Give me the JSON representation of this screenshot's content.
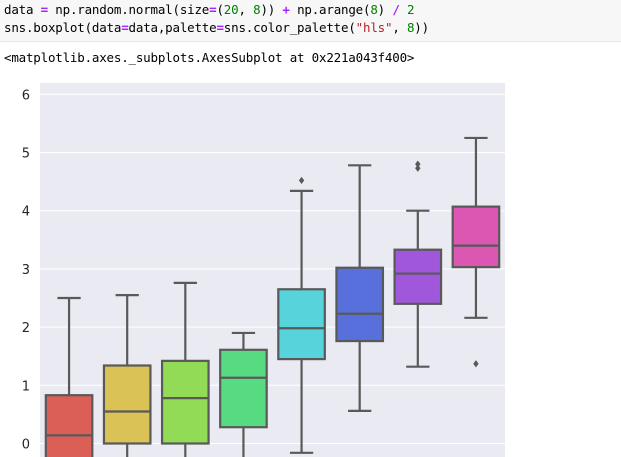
{
  "code": {
    "line1": {
      "a": "data ",
      "op1": "=",
      "b": " np.random.normal(size",
      "op2": "=",
      "c": "(",
      "n1": "20",
      "d": ", ",
      "n2": "8",
      "e": ")) ",
      "op3": "+",
      "f": " np.arange(",
      "n3": "8",
      "g": ") ",
      "op4": "/",
      "h": " ",
      "n4": "2"
    },
    "line2": {
      "a": "sns.boxplot(data",
      "op1": "=",
      "b": "data,palette",
      "op2": "=",
      "c": "sns.color_palette(",
      "s1": "\"hls\"",
      "d": ", ",
      "n1": "8",
      "e": "))"
    }
  },
  "output_text": "<matplotlib.axes._subplots.AxesSubplot at 0x221a043f400>",
  "chart_data": {
    "type": "boxplot",
    "title": "",
    "xlabel": "",
    "ylabel": "",
    "ylim_visible": [
      -0.25,
      6.25
    ],
    "yticks": [
      "0",
      "1",
      "2",
      "3",
      "4",
      "5",
      "6"
    ],
    "ytick_values": [
      0,
      1,
      2,
      3,
      4,
      5,
      6
    ],
    "grid": true,
    "background": "#eaeaf2",
    "series": [
      {
        "color": "#db5f57",
        "q1": -0.3,
        "median": 0.14,
        "q3": 0.83,
        "whisker_low": -0.3,
        "whisker_high": 2.5,
        "outliers": []
      },
      {
        "color": "#dbc257",
        "q1": 0.0,
        "median": 0.55,
        "q3": 1.34,
        "whisker_low": -0.3,
        "whisker_high": 2.55,
        "outliers": []
      },
      {
        "color": "#91db57",
        "q1": 0.0,
        "median": 0.78,
        "q3": 1.42,
        "whisker_low": -0.3,
        "whisker_high": 2.76,
        "outliers": []
      },
      {
        "color": "#57db80",
        "q1": 0.28,
        "median": 1.13,
        "q3": 1.61,
        "whisker_low": -0.3,
        "whisker_high": 1.9,
        "outliers": []
      },
      {
        "color": "#57d3db",
        "q1": 1.45,
        "median": 1.98,
        "q3": 2.65,
        "whisker_low": -0.16,
        "whisker_high": 4.34,
        "outliers": [
          4.52
        ]
      },
      {
        "color": "#5770db",
        "q1": 1.76,
        "median": 2.23,
        "q3": 3.02,
        "whisker_low": 0.56,
        "whisker_high": 4.78,
        "outliers": []
      },
      {
        "color": "#a157db",
        "q1": 2.4,
        "median": 2.92,
        "q3": 3.33,
        "whisker_low": 1.32,
        "whisker_high": 4.0,
        "outliers": [
          4.73,
          4.8
        ]
      },
      {
        "color": "#db57b2",
        "q1": 3.03,
        "median": 3.4,
        "q3": 4.07,
        "whisker_low": 2.16,
        "whisker_high": 5.25,
        "outliers": [
          1.37
        ]
      }
    ]
  }
}
